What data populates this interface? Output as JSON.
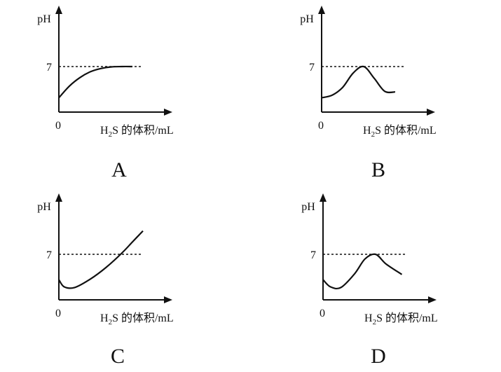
{
  "chart_data": [
    {
      "type": "line",
      "option_label": "A",
      "ylabel": "pH",
      "xlabel_parts": [
        "H",
        "2",
        "S 的体积/mL"
      ],
      "origin_label": "0",
      "y_tick_label": "7",
      "reference_y": 7,
      "ylim": [
        0,
        14
      ],
      "xlim": [
        0,
        10
      ],
      "x": [
        0,
        1,
        2,
        3,
        4,
        5,
        6,
        7
      ],
      "y": [
        2.2,
        4.0,
        5.3,
        6.2,
        6.7,
        6.95,
        7.0,
        7.0
      ]
    },
    {
      "type": "line",
      "option_label": "B",
      "ylabel": "pH",
      "xlabel_parts": [
        "H",
        "2",
        "S 的体积/mL"
      ],
      "origin_label": "0",
      "y_tick_label": "7",
      "reference_y": 7,
      "ylim": [
        0,
        14
      ],
      "xlim": [
        0,
        10
      ],
      "x": [
        0,
        1,
        2,
        3,
        4,
        5,
        6,
        7
      ],
      "y": [
        2.2,
        2.6,
        3.8,
        6.0,
        7.0,
        5.2,
        3.2,
        3.1
      ]
    },
    {
      "type": "line",
      "option_label": "C",
      "ylabel": "pH",
      "xlabel_parts": [
        "H",
        "2",
        "S 的体积/mL"
      ],
      "origin_label": "0",
      "y_tick_label": "7",
      "reference_y": 7,
      "ylim": [
        0,
        14
      ],
      "xlim": [
        0,
        10
      ],
      "x": [
        0,
        0.5,
        1.5,
        3,
        4.5,
        6,
        7,
        8
      ],
      "y": [
        3.1,
        2.0,
        1.9,
        3.2,
        5.0,
        7.2,
        8.9,
        10.6
      ]
    },
    {
      "type": "line",
      "option_label": "D",
      "ylabel": "pH",
      "xlabel_parts": [
        "H",
        "2",
        "S 的体积/mL"
      ],
      "origin_label": "0",
      "y_tick_label": "7",
      "reference_y": 7,
      "ylim": [
        0,
        14
      ],
      "xlim": [
        0,
        10
      ],
      "x": [
        0,
        0.7,
        1.7,
        3,
        4,
        5,
        6,
        7.5
      ],
      "y": [
        3.1,
        2.0,
        1.9,
        4.0,
        6.3,
        7.0,
        5.5,
        3.9
      ]
    }
  ]
}
